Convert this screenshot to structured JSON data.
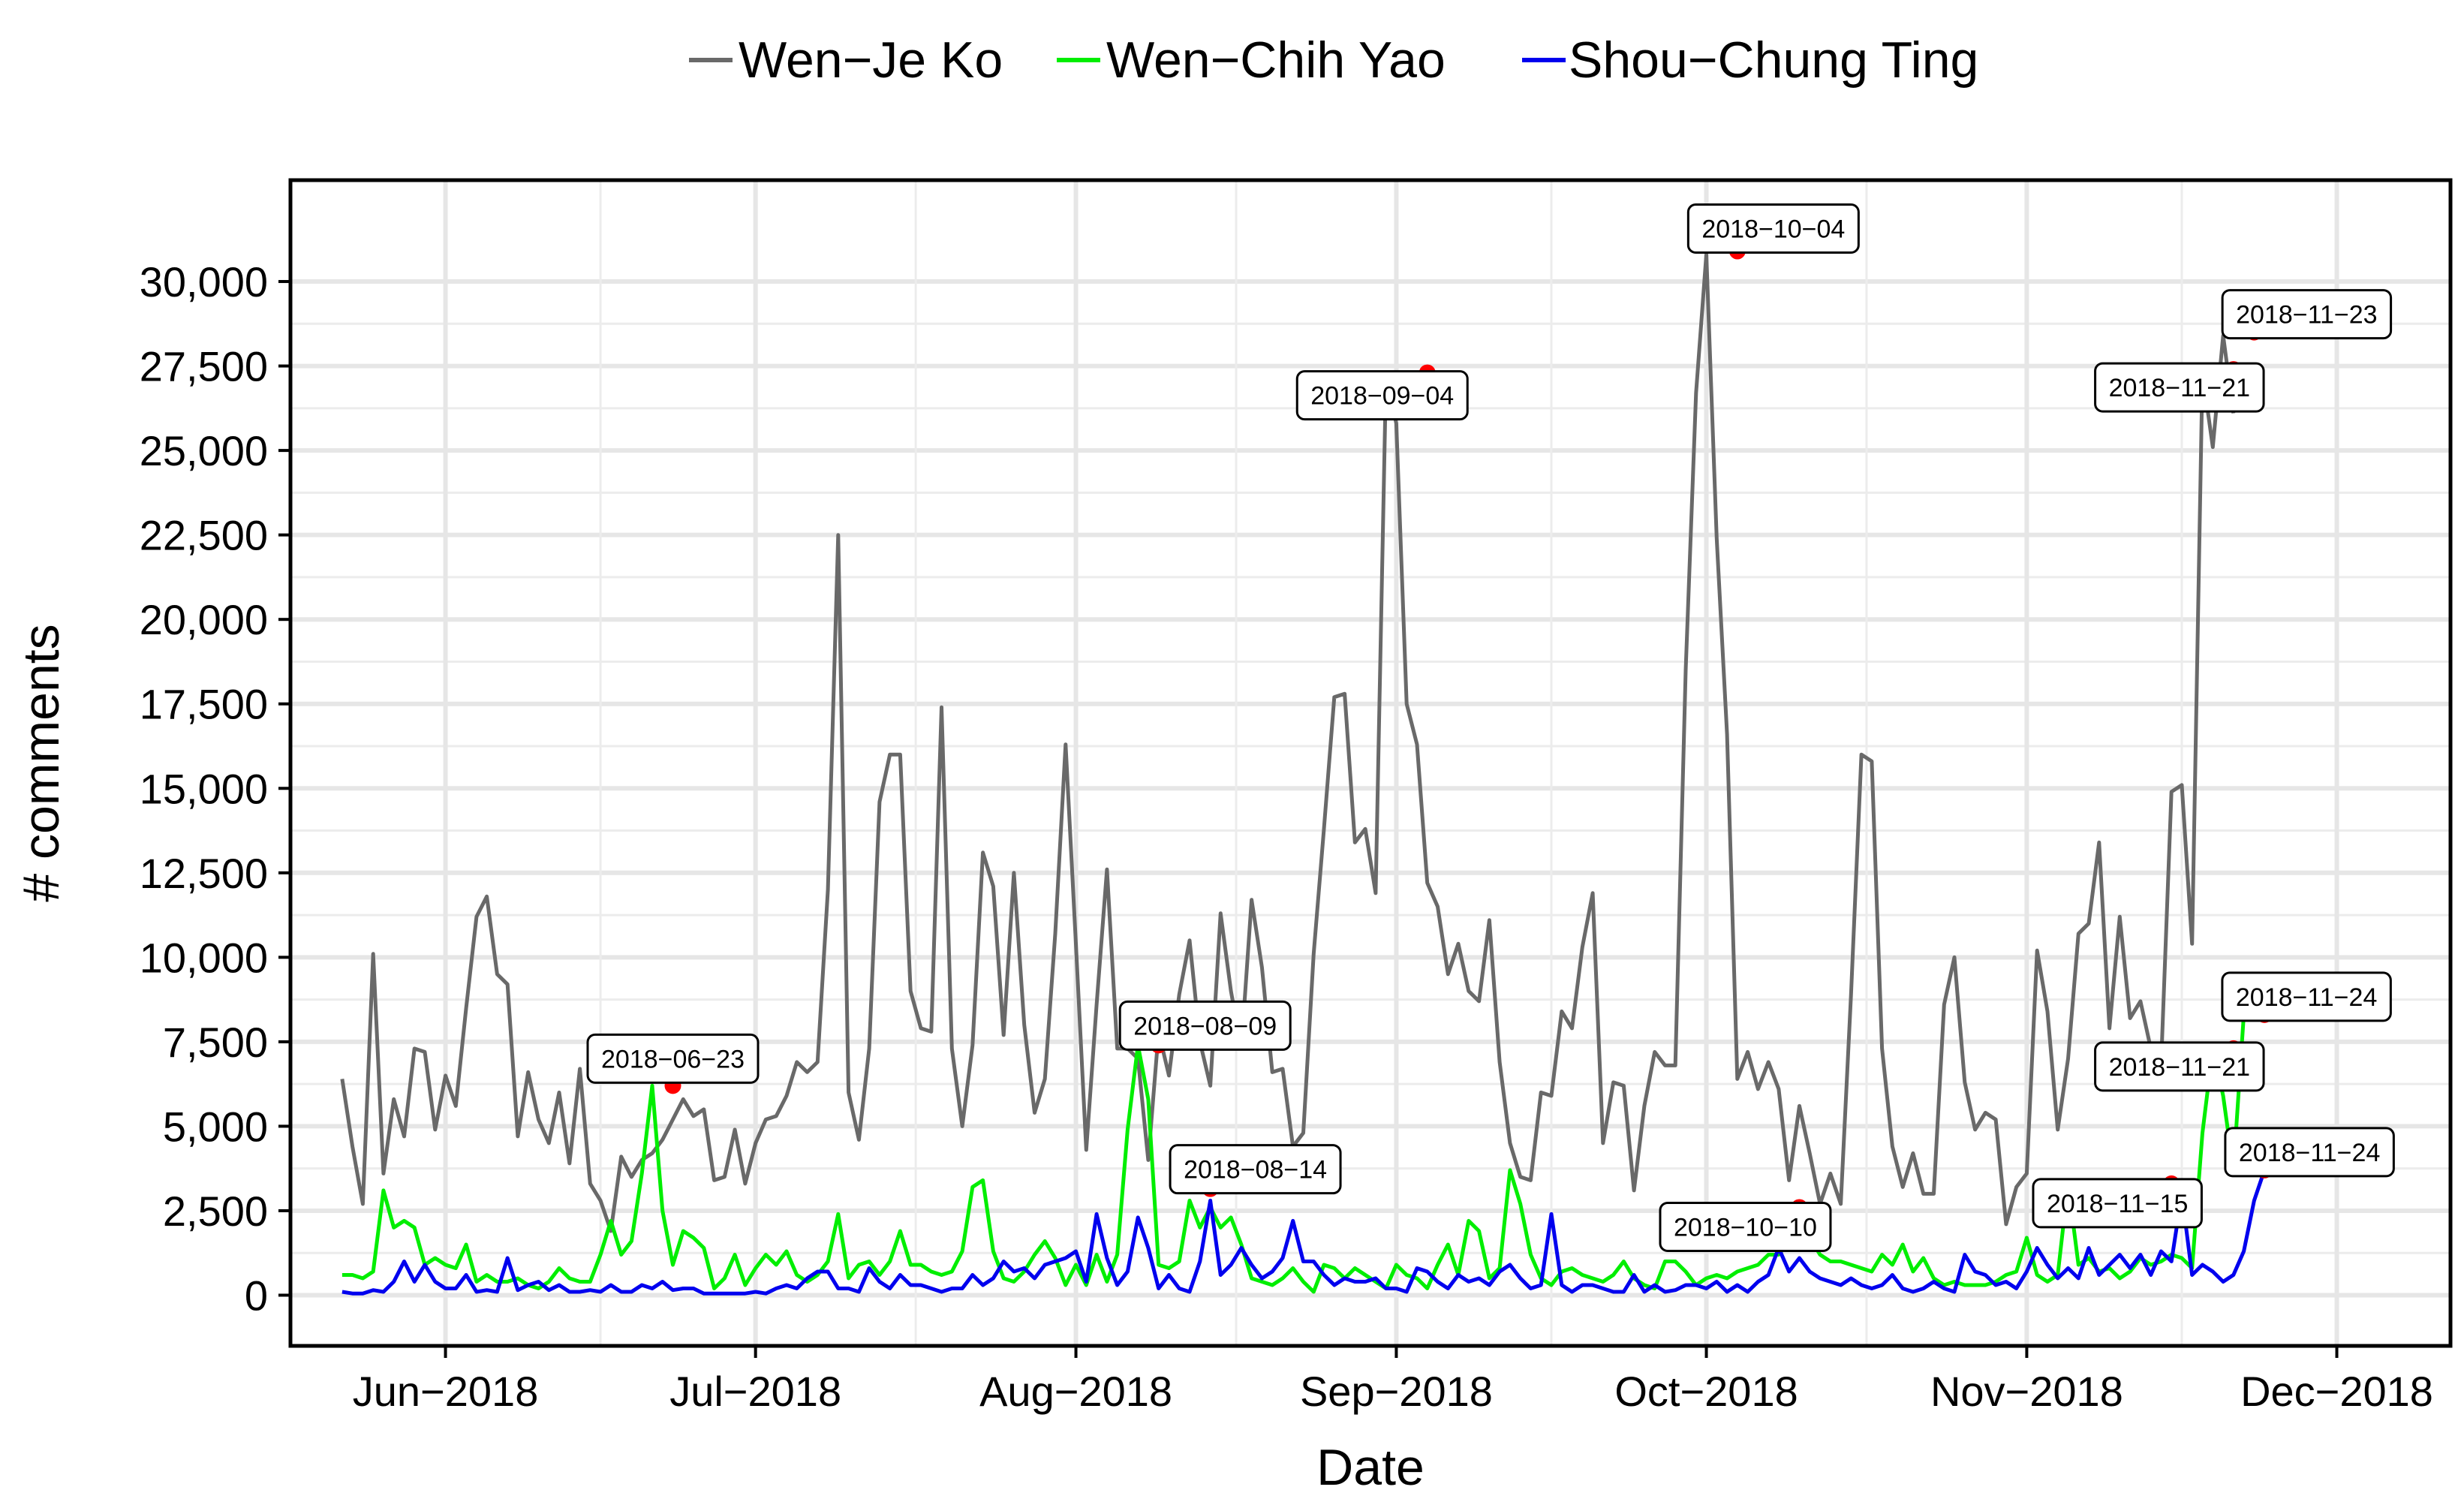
{
  "chart_data": {
    "type": "line",
    "xlabel": "Date",
    "ylabel": "# comments",
    "x_ticks": [
      "Jun−2018",
      "Jul−2018",
      "Aug−2018",
      "Sep−2018",
      "Oct−2018",
      "Nov−2018",
      "Dec−2018"
    ],
    "x_tick_dates": [
      "2018-06-01",
      "2018-07-01",
      "2018-08-01",
      "2018-09-01",
      "2018-10-01",
      "2018-11-01",
      "2018-12-01"
    ],
    "xlim": [
      "2018-05-17",
      "2018-12-12"
    ],
    "y_ticks": [
      0,
      2500,
      5000,
      7500,
      10000,
      12500,
      15000,
      17500,
      20000,
      22500,
      25000,
      27500,
      30000
    ],
    "y_tick_labels": [
      "0",
      "2,500",
      "5,000",
      "7,500",
      "10,000",
      "12,500",
      "15,000",
      "17,500",
      "20,000",
      "22,500",
      "25,000",
      "27,500",
      "30,000"
    ],
    "ylim": [
      -1500,
      33000
    ],
    "grid": true,
    "legend_position": "top",
    "series": [
      {
        "name": "Wen−Je Ko",
        "color": "#696969",
        "start_date": "2018-05-22",
        "values": [
          6400,
          4400,
          2700,
          10100,
          3600,
          5800,
          4700,
          7300,
          7200,
          4900,
          6500,
          5600,
          8500,
          11200,
          11800,
          9500,
          9200,
          4700,
          6600,
          5200,
          4500,
          6000,
          3900,
          6700,
          3300,
          2800,
          1900,
          4100,
          3500,
          4000,
          4200,
          4600,
          5200,
          5800,
          5300,
          5500,
          3400,
          3500,
          4900,
          3300,
          4500,
          5200,
          5300,
          5900,
          6900,
          6600,
          6900,
          12000,
          22500,
          6000,
          4600,
          7300,
          14600,
          16000,
          16000,
          9000,
          7900,
          7800,
          17400,
          7300,
          5000,
          7400,
          13100,
          12100,
          7700,
          12500,
          8000,
          5400,
          6400,
          10700,
          16300,
          10400,
          4300,
          8600,
          12600,
          7300,
          7300,
          7000,
          4000,
          7800,
          6500,
          8900,
          10500,
          7500,
          6200,
          11300,
          9000,
          7300,
          11700,
          9700,
          6600,
          6700,
          4400,
          4800,
          10100,
          13800,
          17700,
          17800,
          13400,
          13800,
          11900,
          27200,
          25800,
          17500,
          16300,
          12200,
          11500,
          9500,
          10400,
          9000,
          8700,
          11100,
          6900,
          4500,
          3500,
          3400,
          6000,
          5900,
          8400,
          7900,
          10300,
          11900,
          4500,
          6300,
          6200,
          3100,
          5600,
          7200,
          6800,
          6800,
          18500,
          26700,
          30800,
          22400,
          16600,
          6400,
          7200,
          6100,
          6900,
          6100,
          3400,
          5600,
          4200,
          2700,
          3600,
          2700,
          8900,
          16000,
          15800,
          7300,
          4400,
          3200,
          4200,
          3000,
          3000,
          8600,
          10000,
          6300,
          4900,
          5400,
          5200,
          2100,
          3200,
          3600,
          10200,
          8400,
          4900,
          7000,
          10700,
          11000,
          13400,
          7900,
          11200,
          8200,
          8700,
          7300,
          6800,
          14900,
          15100,
          10400,
          27300,
          25100,
          28400,
          26100
        ]
      },
      {
        "name": "Wen−Chih Yao",
        "color": "#00ee00",
        "start_date": "2018-05-22",
        "values": [
          600,
          600,
          500,
          700,
          3100,
          2000,
          2200,
          2000,
          900,
          1100,
          900,
          800,
          1500,
          400,
          600,
          400,
          400,
          500,
          300,
          200,
          400,
          800,
          500,
          400,
          400,
          1200,
          2200,
          1200,
          1600,
          3600,
          6200,
          2500,
          900,
          1900,
          1700,
          1400,
          200,
          500,
          1200,
          300,
          800,
          1200,
          900,
          1300,
          600,
          400,
          600,
          1000,
          2400,
          500,
          900,
          1000,
          600,
          1000,
          1900,
          900,
          900,
          700,
          600,
          700,
          1300,
          3200,
          3400,
          1300,
          500,
          400,
          700,
          1200,
          1600,
          1100,
          300,
          900,
          300,
          1200,
          400,
          1200,
          4900,
          7400,
          5800,
          900,
          800,
          1000,
          2800,
          2000,
          2600,
          2000,
          2300,
          1500,
          500,
          400,
          300,
          500,
          800,
          400,
          100,
          900,
          800,
          500,
          800,
          600,
          400,
          200,
          900,
          600,
          500,
          200,
          900,
          1500,
          600,
          2200,
          1900,
          500,
          800,
          3700,
          2700,
          1200,
          500,
          300,
          700,
          800,
          600,
          500,
          400,
          600,
          1000,
          500,
          300,
          200,
          1000,
          1000,
          700,
          300,
          500,
          600,
          500,
          700,
          800,
          900,
          1200,
          1200,
          1600,
          2700,
          1700,
          1200,
          1000,
          1000,
          900,
          800,
          700,
          1200,
          900,
          1500,
          700,
          1100,
          500,
          300,
          400,
          300,
          300,
          300,
          400,
          600,
          700,
          1700,
          600,
          400,
          600,
          3300,
          900,
          1100,
          700,
          800,
          500,
          700,
          1100,
          900,
          1000,
          1200,
          1100,
          800,
          4800,
          7300,
          5900,
          3700,
          8300
        ]
      },
      {
        "name": "Shou−Chung Ting",
        "color": "#0000ee",
        "start_date": "2018-05-22",
        "values": [
          100,
          50,
          50,
          150,
          100,
          400,
          1000,
          400,
          900,
          400,
          200,
          200,
          600,
          100,
          150,
          100,
          1100,
          150,
          300,
          400,
          150,
          300,
          100,
          100,
          150,
          100,
          300,
          100,
          100,
          300,
          200,
          400,
          150,
          200,
          200,
          50,
          50,
          50,
          50,
          50,
          100,
          50,
          200,
          300,
          200,
          500,
          700,
          700,
          200,
          200,
          100,
          800,
          400,
          200,
          600,
          300,
          300,
          200,
          100,
          200,
          200,
          600,
          300,
          500,
          1000,
          700,
          800,
          500,
          900,
          1000,
          1100,
          1300,
          400,
          2400,
          1100,
          300,
          700,
          2300,
          1400,
          200,
          600,
          200,
          100,
          1000,
          2800,
          600,
          900,
          1400,
          900,
          500,
          700,
          1100,
          2200,
          1000,
          1000,
          600,
          300,
          500,
          400,
          400,
          500,
          200,
          200,
          100,
          800,
          700,
          400,
          200,
          600,
          400,
          500,
          300,
          700,
          900,
          500,
          200,
          300,
          2400,
          300,
          100,
          300,
          300,
          200,
          100,
          100,
          600,
          100,
          300,
          100,
          150,
          300,
          300,
          200,
          400,
          100,
          300,
          100,
          400,
          600,
          1400,
          700,
          1100,
          700,
          500,
          400,
          300,
          500,
          300,
          200,
          300,
          600,
          200,
          100,
          200,
          400,
          200,
          100,
          1200,
          700,
          600,
          300,
          400,
          200,
          700,
          1400,
          900,
          500,
          800,
          500,
          1400,
          600,
          900,
          1200,
          800,
          1200,
          600,
          1300,
          1000,
          3000,
          600,
          900,
          700,
          400,
          600,
          1300,
          2800,
          3700
        ]
      }
    ],
    "annotations": [
      {
        "series": 1,
        "date": "2018-06-23",
        "value": 6200,
        "label": "2018−06−23",
        "dx": 0,
        "dy": -36
      },
      {
        "series": 1,
        "date": "2018-08-09",
        "value": 7400,
        "label": "2018−08−09",
        "dx": 62,
        "dy": -26
      },
      {
        "series": 2,
        "date": "2018-08-14",
        "value": 3150,
        "label": "2018−08−14",
        "dx": 60,
        "dy": -26
      },
      {
        "series": 0,
        "date": "2018-09-04",
        "value": 27300,
        "label": "2018−09−04",
        "dx": -60,
        "dy": 30
      },
      {
        "series": 0,
        "date": "2018-10-04",
        "value": 30900,
        "label": "2018−10−04",
        "dx": 48,
        "dy": -30
      },
      {
        "series": 2,
        "date": "2018-10-10",
        "value": 2600,
        "label": "2018−10−10",
        "dx": -72,
        "dy": 26
      },
      {
        "series": 2,
        "date": "2018-11-15",
        "value": 3300,
        "label": "2018−11−15",
        "dx": -72,
        "dy": 26
      },
      {
        "series": 1,
        "date": "2018-11-21",
        "value": 7300,
        "label": "2018−11−21",
        "dx": -72,
        "dy": 24
      },
      {
        "series": 0,
        "date": "2018-11-21",
        "value": 27400,
        "label": "2018−11−21",
        "dx": -72,
        "dy": 24
      },
      {
        "series": 0,
        "date": "2018-11-23",
        "value": 28500,
        "label": "2018−11−23",
        "dx": 70,
        "dy": -24
      },
      {
        "series": 1,
        "date": "2018-11-24",
        "value": 8300,
        "label": "2018−11−24",
        "dx": 56,
        "dy": -24
      },
      {
        "series": 2,
        "date": "2018-11-24",
        "value": 3700,
        "label": "2018−11−24",
        "dx": 60,
        "dy": -24
      }
    ],
    "marker_color": "#ff0000"
  }
}
